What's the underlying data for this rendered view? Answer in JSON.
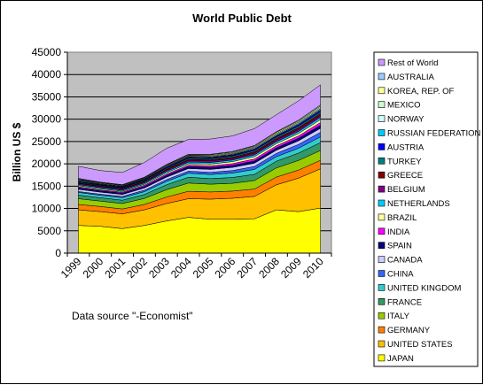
{
  "chart_data": {
    "type": "area",
    "stacked": true,
    "title": "World Public Debt",
    "xlabel": "",
    "ylabel": "Billion US $",
    "note": "Data source \"-Economist\"",
    "ylim": [
      0,
      45000
    ],
    "yticks": [
      "0",
      "5000",
      "10000",
      "15000",
      "20000",
      "25000",
      "30000",
      "35000",
      "40000",
      "45000"
    ],
    "yticks_values": [
      0,
      5000,
      10000,
      15000,
      20000,
      25000,
      30000,
      35000,
      40000,
      45000
    ],
    "categories": [
      "1999",
      "2000",
      "2001",
      "2002",
      "2003",
      "2004",
      "2005",
      "2006",
      "2007",
      "2008",
      "2009",
      "2010"
    ],
    "grid": true,
    "legend_position": "right",
    "series": [
      {
        "name": "JAPAN",
        "color": "#FFFF00",
        "values": [
          6200,
          6000,
          5500,
          6200,
          7200,
          8000,
          7600,
          7600,
          7700,
          9700,
          9300,
          10100
        ]
      },
      {
        "name": "UNITED STATES",
        "color": "#FFC000",
        "values": [
          3500,
          3300,
          3300,
          3500,
          3900,
          4200,
          4500,
          4700,
          5000,
          5600,
          7500,
          8800
        ]
      },
      {
        "name": "GERMANY",
        "color": "#FF8000",
        "values": [
          1200,
          1150,
          1100,
          1200,
          1450,
          1650,
          1600,
          1600,
          1650,
          1750,
          1800,
          1900
        ]
      },
      {
        "name": "ITALY",
        "color": "#99CC00",
        "values": [
          1300,
          1200,
          1200,
          1350,
          1650,
          1850,
          1750,
          1750,
          1900,
          2050,
          2150,
          2200
        ]
      },
      {
        "name": "FRANCE",
        "color": "#339966",
        "values": [
          800,
          750,
          750,
          900,
          1100,
          1300,
          1250,
          1300,
          1400,
          1500,
          1650,
          1750
        ]
      },
      {
        "name": "UNITED KINGDOM",
        "color": "#33CCCC",
        "values": [
          600,
          550,
          550,
          600,
          750,
          900,
          900,
          1000,
          1100,
          1000,
          1100,
          1300
        ]
      },
      {
        "name": "CHINA",
        "color": "#3366FF",
        "values": [
          200,
          250,
          300,
          350,
          400,
          450,
          500,
          550,
          650,
          750,
          850,
          1000
        ]
      },
      {
        "name": "CANADA",
        "color": "#CCCCFF",
        "values": [
          500,
          450,
          450,
          500,
          550,
          600,
          650,
          700,
          750,
          700,
          800,
          900
        ]
      },
      {
        "name": "SPAIN",
        "color": "#000080",
        "values": [
          350,
          300,
          300,
          350,
          400,
          450,
          450,
          450,
          500,
          550,
          600,
          700
        ]
      },
      {
        "name": "INDIA",
        "color": "#FF00FF",
        "values": [
          200,
          200,
          200,
          250,
          300,
          300,
          350,
          400,
          450,
          450,
          500,
          600
        ]
      },
      {
        "name": "BRAZIL",
        "color": "#FFFF99",
        "values": [
          250,
          250,
          200,
          250,
          300,
          350,
          400,
          450,
          500,
          500,
          550,
          650
        ]
      },
      {
        "name": "NETHERLANDS",
        "color": "#00CCFF",
        "values": [
          250,
          250,
          250,
          250,
          300,
          350,
          350,
          350,
          400,
          400,
          450,
          500
        ]
      },
      {
        "name": "BELGIUM",
        "color": "#800080",
        "values": [
          250,
          250,
          250,
          250,
          300,
          350,
          350,
          350,
          400,
          400,
          450,
          450
        ]
      },
      {
        "name": "GREECE",
        "color": "#800000",
        "values": [
          150,
          150,
          150,
          150,
          200,
          250,
          250,
          250,
          300,
          350,
          400,
          450
        ]
      },
      {
        "name": "TURKEY",
        "color": "#008080",
        "values": [
          150,
          150,
          150,
          200,
          200,
          250,
          250,
          300,
          300,
          300,
          350,
          350
        ]
      },
      {
        "name": "AUSTRIA",
        "color": "#0000FF",
        "values": [
          150,
          150,
          150,
          150,
          200,
          200,
          200,
          200,
          250,
          250,
          300,
          300
        ]
      },
      {
        "name": "RUSSIAN FEDERATION",
        "color": "#00CCFF",
        "values": [
          200,
          100,
          100,
          100,
          100,
          100,
          100,
          100,
          100,
          100,
          150,
          200
        ]
      },
      {
        "name": "NORWAY",
        "color": "#CCFFFF",
        "values": [
          100,
          100,
          100,
          100,
          150,
          150,
          150,
          150,
          200,
          200,
          200,
          200
        ]
      },
      {
        "name": "MEXICO",
        "color": "#CCFFCC",
        "values": [
          150,
          150,
          150,
          150,
          150,
          150,
          200,
          200,
          200,
          250,
          250,
          300
        ]
      },
      {
        "name": "KOREA, REP. OF",
        "color": "#FFFF99",
        "values": [
          100,
          100,
          100,
          100,
          150,
          150,
          200,
          200,
          200,
          250,
          250,
          300
        ]
      },
      {
        "name": "AUSTRALIA",
        "color": "#99CCFF",
        "values": [
          150,
          100,
          100,
          100,
          100,
          150,
          150,
          150,
          150,
          150,
          200,
          250
        ]
      },
      {
        "name": "Rest of World",
        "color": "#CC99FF",
        "values": [
          2700,
          2600,
          2700,
          3300,
          3600,
          3300,
          3400,
          3500,
          3800,
          3800,
          4300,
          4500
        ]
      }
    ]
  }
}
